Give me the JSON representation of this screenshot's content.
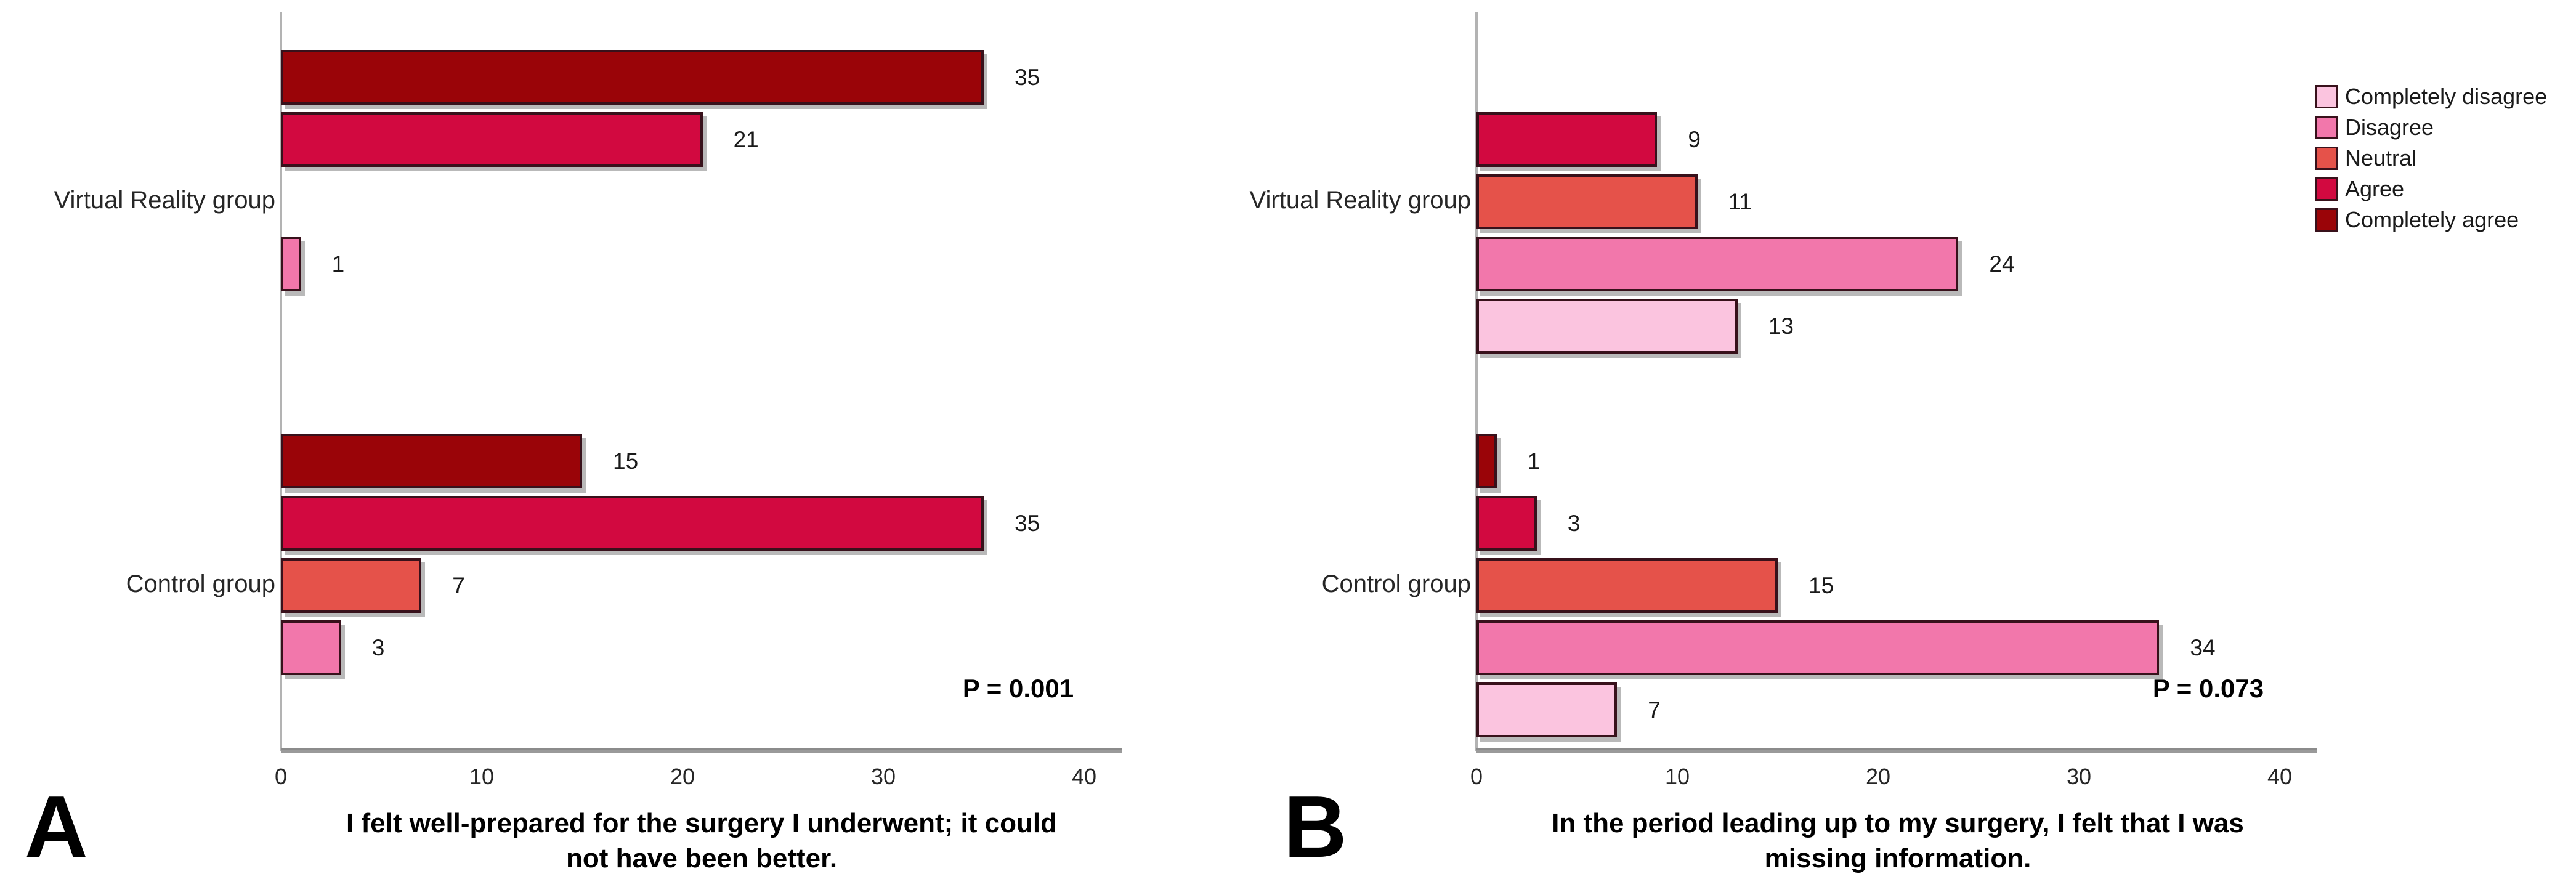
{
  "page": {
    "background_color": "#ffffff",
    "figure_labels": {
      "left": "A",
      "right": "B"
    }
  },
  "legend": {
    "position": "top-right",
    "swatch_border_color": "#38111b",
    "items": [
      {
        "label": "Completely disagree",
        "color": "#FBC4DF"
      },
      {
        "label": "Disagree",
        "color": "#F277AB"
      },
      {
        "label": "Neutral",
        "color": "#E5524A"
      },
      {
        "label": "Agree",
        "color": "#D20940"
      },
      {
        "label": "Completely agree",
        "color": "#9A0408"
      }
    ]
  },
  "chart_data": [
    {
      "id": "A",
      "type": "bar",
      "orientation": "horizontal",
      "title": "I felt well-prepared for the surgery I underwent; it could\nnot have been better.",
      "p_value_label": "P = 0.001",
      "x_ticks": [
        0,
        10,
        20,
        30,
        40
      ],
      "xlim": [
        0,
        42
      ],
      "grid": false,
      "categories_top_to_bottom": [
        "Completely agree",
        "Agree",
        "Neutral",
        "Disagree",
        "Completely disagree"
      ],
      "groups": [
        {
          "label": "Virtual Reality group",
          "values": {
            "Completely agree": 35,
            "Agree": 21,
            "Neutral": 0,
            "Disagree": 1,
            "Completely disagree": 0
          }
        },
        {
          "label": "Control group",
          "values": {
            "Completely agree": 15,
            "Agree": 35,
            "Neutral": 7,
            "Disagree": 3,
            "Completely disagree": 0
          }
        }
      ]
    },
    {
      "id": "B",
      "type": "bar",
      "orientation": "horizontal",
      "title": "In the period leading up to my surgery, I felt that I was\nmissing information.",
      "p_value_label": "P = 0.073",
      "x_ticks": [
        0,
        10,
        20,
        30,
        40
      ],
      "xlim": [
        0,
        42
      ],
      "grid": false,
      "categories_top_to_bottom": [
        "Completely agree",
        "Agree",
        "Neutral",
        "Disagree",
        "Completely disagree"
      ],
      "groups": [
        {
          "label": "Virtual Reality group",
          "values": {
            "Completely agree": 0,
            "Agree": 9,
            "Neutral": 11,
            "Disagree": 24,
            "Completely disagree": 13
          }
        },
        {
          "label": "Control group",
          "values": {
            "Completely agree": 1,
            "Agree": 3,
            "Neutral": 15,
            "Disagree": 34,
            "Completely disagree": 7
          }
        }
      ]
    }
  ]
}
